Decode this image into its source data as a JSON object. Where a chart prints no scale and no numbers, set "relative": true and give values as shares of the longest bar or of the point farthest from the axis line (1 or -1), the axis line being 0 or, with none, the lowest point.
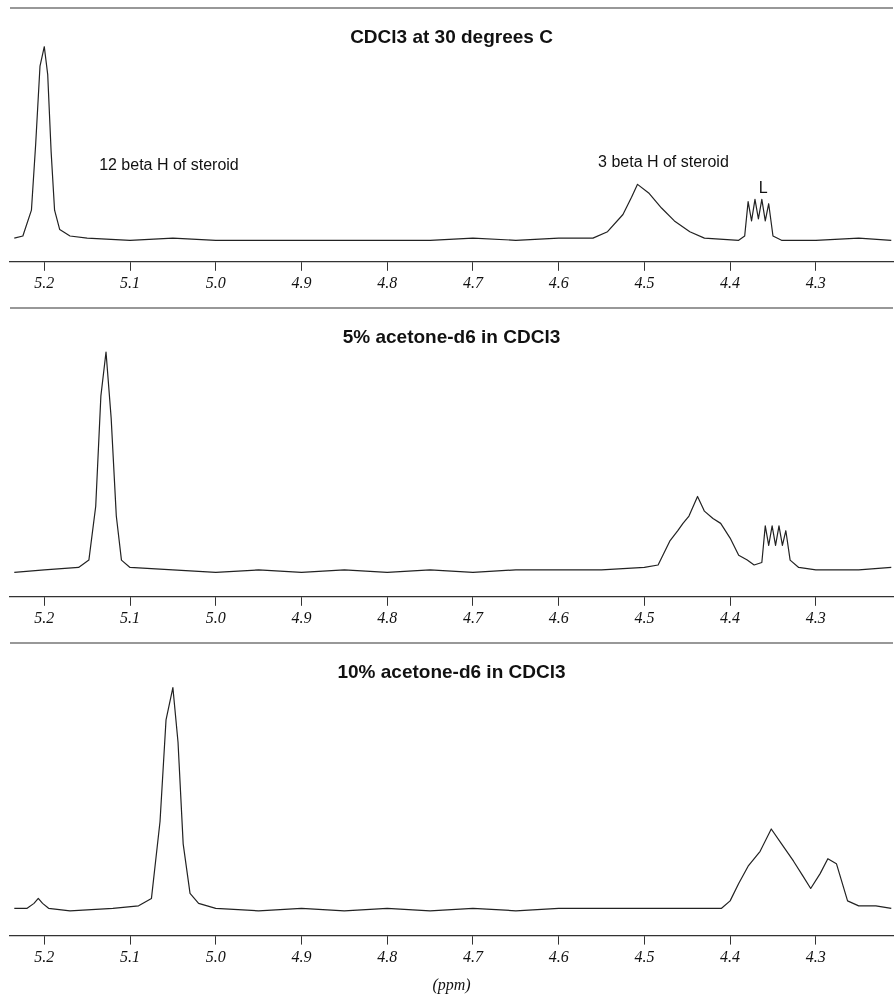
{
  "chart_data": [
    {
      "type": "line",
      "title": "CDCl3 at 30 degrees C",
      "relative": true,
      "xlim": [
        5.24,
        4.21
      ],
      "xticks": [
        {
          "value": 5.2,
          "label": "5.2"
        },
        {
          "value": 5.1,
          "label": "5.1"
        },
        {
          "value": 5,
          "label": "5.0"
        },
        {
          "value": 4.9,
          "label": "4.9"
        },
        {
          "value": 4.8,
          "label": "4.8"
        },
        {
          "value": 4.7,
          "label": "4.7"
        },
        {
          "value": 4.6,
          "label": "4.6"
        },
        {
          "value": 4.5,
          "label": "4.5"
        },
        {
          "value": 4.4,
          "label": "4.4"
        },
        {
          "value": 4.3,
          "label": "4.3"
        }
      ],
      "grid": false,
      "legend": false,
      "marker": "none",
      "line_style": "solid",
      "annotations": [
        "12 beta H of steroid",
        "3 beta H of steroid",
        "L"
      ],
      "series": [
        {
          "color": "#222222",
          "x": [
            5.235,
            5.225,
            5.215,
            5.21,
            5.205,
            5.2,
            5.196,
            5.192,
            5.188,
            5.182,
            5.17,
            5.15,
            5.1,
            5.05,
            5.0,
            4.95,
            4.9,
            4.85,
            4.8,
            4.75,
            4.7,
            4.65,
            4.6,
            4.56,
            4.543,
            4.525,
            4.515,
            4.508,
            4.495,
            4.48,
            4.465,
            4.447,
            4.43,
            4.39,
            4.383,
            4.379,
            4.375,
            4.371,
            4.367,
            4.363,
            4.359,
            4.355,
            4.35,
            4.34,
            4.3,
            4.25,
            4.212
          ],
          "values": [
            0.11,
            0.12,
            0.24,
            0.55,
            0.91,
            1,
            0.87,
            0.51,
            0.24,
            0.15,
            0.12,
            0.11,
            0.1,
            0.11,
            0.1,
            0.1,
            0.1,
            0.1,
            0.1,
            0.1,
            0.11,
            0.1,
            0.11,
            0.11,
            0.14,
            0.22,
            0.3,
            0.36,
            0.32,
            0.25,
            0.19,
            0.14,
            0.11,
            0.1,
            0.12,
            0.28,
            0.19,
            0.29,
            0.2,
            0.29,
            0.19,
            0.27,
            0.12,
            0.1,
            0.1,
            0.11,
            0.1
          ]
        }
      ]
    },
    {
      "type": "line",
      "title": "5% acetone-d6 in CDCl3",
      "relative": true,
      "xlim": [
        5.24,
        4.21
      ],
      "xticks": [
        {
          "value": 5.2,
          "label": "5.2"
        },
        {
          "value": 5.1,
          "label": "5.1"
        },
        {
          "value": 5,
          "label": "5.0"
        },
        {
          "value": 4.9,
          "label": "4.9"
        },
        {
          "value": 4.8,
          "label": "4.8"
        },
        {
          "value": 4.7,
          "label": "4.7"
        },
        {
          "value": 4.6,
          "label": "4.6"
        },
        {
          "value": 4.5,
          "label": "4.5"
        },
        {
          "value": 4.4,
          "label": "4.4"
        },
        {
          "value": 4.3,
          "label": "4.3"
        }
      ],
      "grid": false,
      "legend": false,
      "marker": "none",
      "line_style": "solid",
      "series": [
        {
          "color": "#222222",
          "x": [
            5.235,
            5.2,
            5.16,
            5.148,
            5.14,
            5.134,
            5.128,
            5.122,
            5.116,
            5.11,
            5.1,
            5.05,
            5.0,
            4.95,
            4.9,
            4.85,
            4.8,
            4.75,
            4.7,
            4.65,
            4.6,
            4.55,
            4.5,
            4.484,
            4.47,
            4.461,
            4.455,
            4.448,
            4.438,
            4.43,
            4.42,
            4.411,
            4.4,
            4.39,
            4.38,
            4.372,
            4.363,
            4.359,
            4.355,
            4.351,
            4.347,
            4.343,
            4.339,
            4.335,
            4.33,
            4.32,
            4.3,
            4.25,
            4.212
          ],
          "values": [
            0.1,
            0.11,
            0.12,
            0.15,
            0.37,
            0.82,
            1,
            0.73,
            0.33,
            0.15,
            0.12,
            0.11,
            0.1,
            0.11,
            0.1,
            0.11,
            0.1,
            0.11,
            0.1,
            0.11,
            0.11,
            0.11,
            0.12,
            0.13,
            0.23,
            0.27,
            0.3,
            0.33,
            0.41,
            0.35,
            0.32,
            0.3,
            0.24,
            0.17,
            0.15,
            0.13,
            0.14,
            0.29,
            0.21,
            0.29,
            0.21,
            0.29,
            0.21,
            0.27,
            0.15,
            0.12,
            0.11,
            0.11,
            0.12
          ]
        }
      ]
    },
    {
      "type": "line",
      "title": "10% acetone-d6 in CDCl3",
      "xlabel": "(ppm)",
      "relative": true,
      "xlim": [
        5.24,
        4.21
      ],
      "xticks": [
        {
          "value": 5.2,
          "label": "5.2"
        },
        {
          "value": 5.1,
          "label": "5.1"
        },
        {
          "value": 5,
          "label": "5.0"
        },
        {
          "value": 4.9,
          "label": "4.9"
        },
        {
          "value": 4.8,
          "label": "4.8"
        },
        {
          "value": 4.7,
          "label": "4.7"
        },
        {
          "value": 4.6,
          "label": "4.6"
        },
        {
          "value": 4.5,
          "label": "4.5"
        },
        {
          "value": 4.4,
          "label": "4.4"
        },
        {
          "value": 4.3,
          "label": "4.3"
        }
      ],
      "grid": false,
      "legend": false,
      "marker": "none",
      "line_style": "solid",
      "series": [
        {
          "color": "#222222",
          "x": [
            5.235,
            5.22,
            5.212,
            5.207,
            5.202,
            5.195,
            5.17,
            5.12,
            5.09,
            5.075,
            5.065,
            5.058,
            5.05,
            5.044,
            5.038,
            5.03,
            5.02,
            5.0,
            4.95,
            4.9,
            4.85,
            4.8,
            4.75,
            4.7,
            4.65,
            4.6,
            4.55,
            4.5,
            4.45,
            4.41,
            4.4,
            4.39,
            4.379,
            4.365,
            4.352,
            4.34,
            4.326,
            4.315,
            4.306,
            4.295,
            4.286,
            4.276,
            4.263,
            4.25,
            4.23,
            4.212
          ],
          "values": [
            0.11,
            0.11,
            0.13,
            0.15,
            0.13,
            0.11,
            0.1,
            0.11,
            0.12,
            0.15,
            0.46,
            0.87,
            1,
            0.78,
            0.37,
            0.17,
            0.13,
            0.11,
            0.1,
            0.11,
            0.1,
            0.11,
            0.1,
            0.11,
            0.1,
            0.11,
            0.11,
            0.11,
            0.11,
            0.11,
            0.14,
            0.21,
            0.28,
            0.34,
            0.43,
            0.37,
            0.3,
            0.24,
            0.19,
            0.25,
            0.31,
            0.29,
            0.14,
            0.12,
            0.12,
            0.11
          ]
        }
      ]
    }
  ]
}
